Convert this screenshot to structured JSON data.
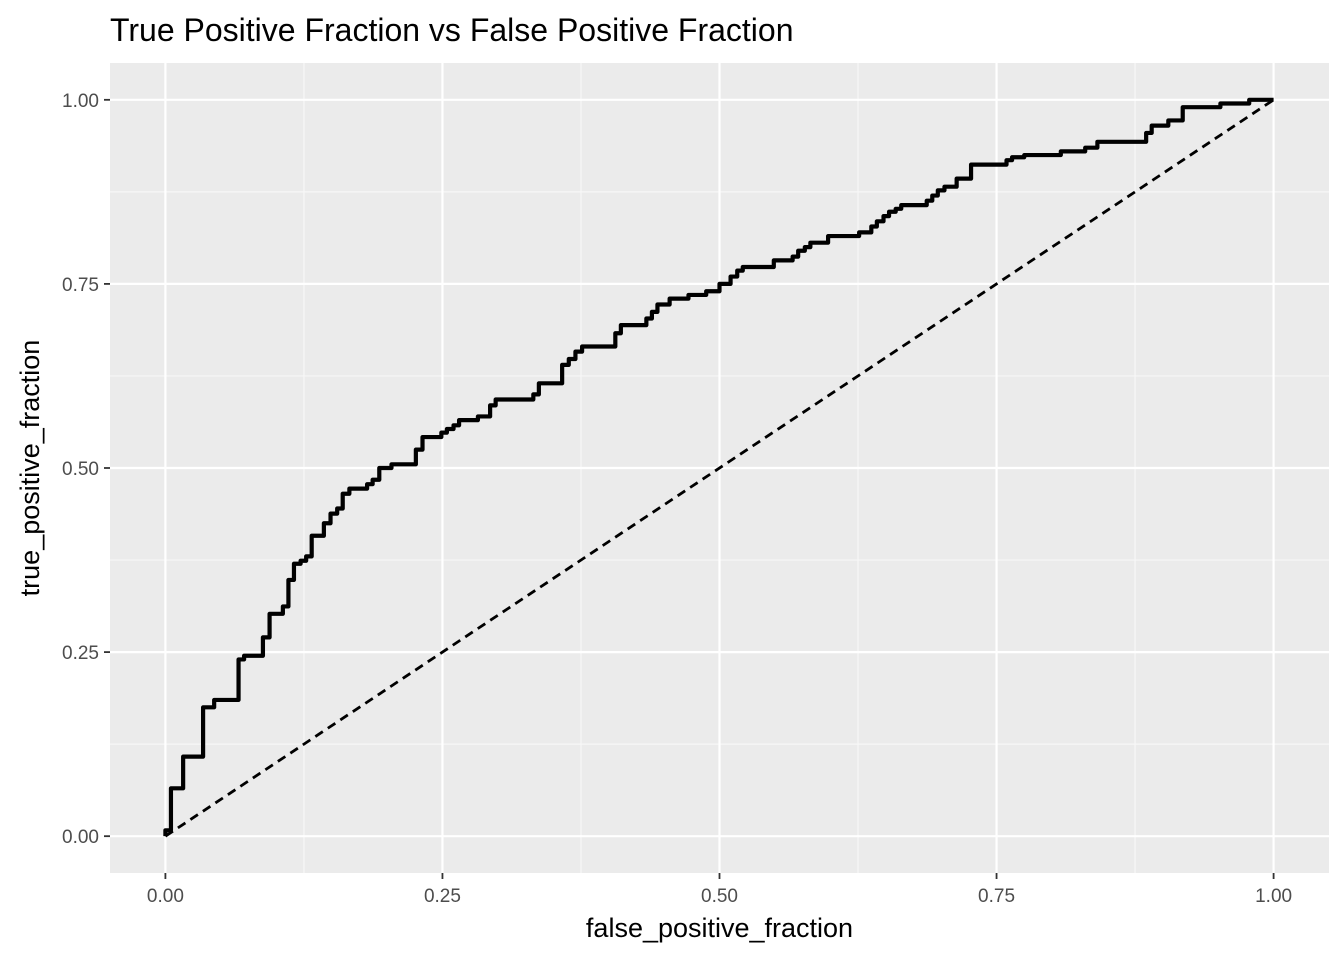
{
  "chart_data": {
    "type": "line",
    "title": "True Positive Fraction vs False Positive Fraction",
    "xlabel": "false_positive_fraction",
    "ylabel": "true_positive_fraction",
    "xlim": [
      -0.05,
      1.05
    ],
    "ylim": [
      -0.05,
      1.05
    ],
    "x_ticks": [
      0,
      0.25,
      0.5,
      0.75,
      1
    ],
    "x_tick_labels": [
      "0.00",
      "0.25",
      "0.50",
      "0.75",
      "1.00"
    ],
    "y_ticks": [
      0,
      0.25,
      0.5,
      0.75,
      1
    ],
    "y_tick_labels": [
      "0.00",
      "0.25",
      "0.50",
      "0.75",
      "1.00"
    ],
    "grid": true,
    "panel_background": "#ebebeb",
    "series": [
      {
        "style": "step",
        "color": "#000000",
        "points": [
          [
            0.0,
            0.0
          ],
          [
            0.0,
            0.008
          ],
          [
            0.005,
            0.008
          ],
          [
            0.005,
            0.065
          ],
          [
            0.016,
            0.065
          ],
          [
            0.016,
            0.108
          ],
          [
            0.034,
            0.108
          ],
          [
            0.034,
            0.175
          ],
          [
            0.044,
            0.175
          ],
          [
            0.044,
            0.185
          ],
          [
            0.066,
            0.185
          ],
          [
            0.066,
            0.24
          ],
          [
            0.071,
            0.24
          ],
          [
            0.071,
            0.245
          ],
          [
            0.088,
            0.245
          ],
          [
            0.088,
            0.27
          ],
          [
            0.094,
            0.27
          ],
          [
            0.094,
            0.302
          ],
          [
            0.106,
            0.302
          ],
          [
            0.106,
            0.312
          ],
          [
            0.111,
            0.312
          ],
          [
            0.111,
            0.348
          ],
          [
            0.116,
            0.348
          ],
          [
            0.116,
            0.37
          ],
          [
            0.122,
            0.37
          ],
          [
            0.122,
            0.374
          ],
          [
            0.127,
            0.374
          ],
          [
            0.127,
            0.38
          ],
          [
            0.132,
            0.38
          ],
          [
            0.132,
            0.408
          ],
          [
            0.143,
            0.408
          ],
          [
            0.143,
            0.425
          ],
          [
            0.149,
            0.425
          ],
          [
            0.149,
            0.438
          ],
          [
            0.155,
            0.438
          ],
          [
            0.155,
            0.445
          ],
          [
            0.16,
            0.445
          ],
          [
            0.16,
            0.465
          ],
          [
            0.166,
            0.465
          ],
          [
            0.166,
            0.472
          ],
          [
            0.182,
            0.472
          ],
          [
            0.182,
            0.478
          ],
          [
            0.187,
            0.478
          ],
          [
            0.187,
            0.484
          ],
          [
            0.193,
            0.484
          ],
          [
            0.193,
            0.5
          ],
          [
            0.204,
            0.5
          ],
          [
            0.204,
            0.505
          ],
          [
            0.226,
            0.505
          ],
          [
            0.226,
            0.525
          ],
          [
            0.232,
            0.525
          ],
          [
            0.232,
            0.542
          ],
          [
            0.249,
            0.542
          ],
          [
            0.249,
            0.548
          ],
          [
            0.254,
            0.548
          ],
          [
            0.254,
            0.553
          ],
          [
            0.26,
            0.553
          ],
          [
            0.26,
            0.558
          ],
          [
            0.265,
            0.558
          ],
          [
            0.265,
            0.565
          ],
          [
            0.282,
            0.565
          ],
          [
            0.282,
            0.57
          ],
          [
            0.293,
            0.57
          ],
          [
            0.293,
            0.585
          ],
          [
            0.298,
            0.585
          ],
          [
            0.298,
            0.593
          ],
          [
            0.332,
            0.593
          ],
          [
            0.332,
            0.6
          ],
          [
            0.337,
            0.6
          ],
          [
            0.337,
            0.615
          ],
          [
            0.358,
            0.615
          ],
          [
            0.358,
            0.64
          ],
          [
            0.364,
            0.64
          ],
          [
            0.364,
            0.648
          ],
          [
            0.37,
            0.648
          ],
          [
            0.37,
            0.658
          ],
          [
            0.376,
            0.658
          ],
          [
            0.376,
            0.665
          ],
          [
            0.406,
            0.665
          ],
          [
            0.406,
            0.683
          ],
          [
            0.411,
            0.683
          ],
          [
            0.411,
            0.694
          ],
          [
            0.434,
            0.694
          ],
          [
            0.434,
            0.703
          ],
          [
            0.439,
            0.703
          ],
          [
            0.439,
            0.712
          ],
          [
            0.444,
            0.712
          ],
          [
            0.444,
            0.722
          ],
          [
            0.455,
            0.722
          ],
          [
            0.455,
            0.73
          ],
          [
            0.472,
            0.73
          ],
          [
            0.472,
            0.735
          ],
          [
            0.488,
            0.735
          ],
          [
            0.488,
            0.74
          ],
          [
            0.5,
            0.74
          ],
          [
            0.5,
            0.75
          ],
          [
            0.51,
            0.75
          ],
          [
            0.51,
            0.76
          ],
          [
            0.516,
            0.76
          ],
          [
            0.516,
            0.768
          ],
          [
            0.521,
            0.768
          ],
          [
            0.521,
            0.773
          ],
          [
            0.549,
            0.773
          ],
          [
            0.549,
            0.782
          ],
          [
            0.566,
            0.782
          ],
          [
            0.566,
            0.787
          ],
          [
            0.571,
            0.787
          ],
          [
            0.571,
            0.795
          ],
          [
            0.577,
            0.795
          ],
          [
            0.577,
            0.8
          ],
          [
            0.582,
            0.8
          ],
          [
            0.582,
            0.806
          ],
          [
            0.598,
            0.806
          ],
          [
            0.598,
            0.815
          ],
          [
            0.626,
            0.815
          ],
          [
            0.626,
            0.82
          ],
          [
            0.637,
            0.82
          ],
          [
            0.637,
            0.828
          ],
          [
            0.642,
            0.828
          ],
          [
            0.642,
            0.835
          ],
          [
            0.648,
            0.835
          ],
          [
            0.648,
            0.842
          ],
          [
            0.653,
            0.842
          ],
          [
            0.653,
            0.848
          ],
          [
            0.659,
            0.848
          ],
          [
            0.659,
            0.852
          ],
          [
            0.664,
            0.852
          ],
          [
            0.664,
            0.857
          ],
          [
            0.687,
            0.857
          ],
          [
            0.687,
            0.863
          ],
          [
            0.692,
            0.863
          ],
          [
            0.692,
            0.87
          ],
          [
            0.697,
            0.87
          ],
          [
            0.697,
            0.877
          ],
          [
            0.703,
            0.877
          ],
          [
            0.703,
            0.882
          ],
          [
            0.714,
            0.882
          ],
          [
            0.714,
            0.893
          ],
          [
            0.727,
            0.893
          ],
          [
            0.727,
            0.912
          ],
          [
            0.759,
            0.912
          ],
          [
            0.759,
            0.918
          ],
          [
            0.764,
            0.918
          ],
          [
            0.764,
            0.922
          ],
          [
            0.775,
            0.922
          ],
          [
            0.775,
            0.925
          ],
          [
            0.808,
            0.925
          ],
          [
            0.808,
            0.93
          ],
          [
            0.83,
            0.93
          ],
          [
            0.83,
            0.935
          ],
          [
            0.841,
            0.935
          ],
          [
            0.841,
            0.943
          ],
          [
            0.885,
            0.943
          ],
          [
            0.885,
            0.955
          ],
          [
            0.89,
            0.955
          ],
          [
            0.89,
            0.965
          ],
          [
            0.905,
            0.965
          ],
          [
            0.905,
            0.972
          ],
          [
            0.918,
            0.972
          ],
          [
            0.918,
            0.99
          ],
          [
            0.952,
            0.99
          ],
          [
            0.952,
            0.995
          ],
          [
            0.978,
            0.995
          ],
          [
            0.978,
            1.0
          ],
          [
            1.0,
            1.0
          ]
        ]
      },
      {
        "style": "dashed",
        "color": "#000000",
        "points": [
          [
            0,
            0
          ],
          [
            1,
            1
          ]
        ]
      }
    ]
  }
}
